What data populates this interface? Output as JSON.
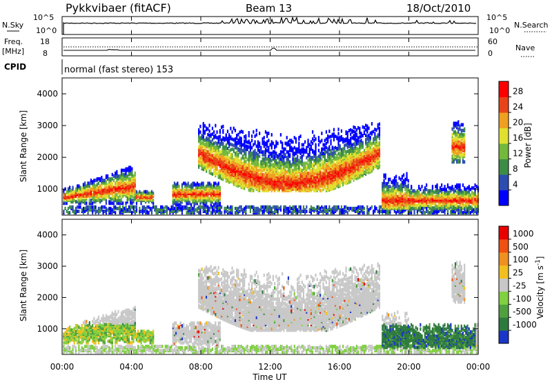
{
  "header": {
    "station": "Pykkvibaer (fitACF)",
    "beam": "Beam 13",
    "date": "18/Oct/2010"
  },
  "nsky_panel": {
    "left_label": "N.Sky",
    "left_ticks": [
      "10^5",
      "10^0"
    ],
    "right_ticks": [
      "10^5",
      "10^0"
    ],
    "right_label": "N.Search"
  },
  "freq_panel": {
    "left_label_line1": "Freq.",
    "left_label_line2": "[MHz]",
    "left_ticks": [
      "18",
      "8"
    ],
    "right_ticks": [
      "60",
      "0"
    ],
    "right_label": "Nave"
  },
  "cpid": {
    "label": "CPID",
    "value": "normal (fast stereo) 153"
  },
  "chart_data": [
    {
      "type": "heatmap",
      "title": "",
      "ylabel": "Slant Range [km]",
      "y_ticks": [
        "4000",
        "3000",
        "2000",
        "1000"
      ],
      "ylim": [
        180,
        4500
      ],
      "colorbar_label": "Power [dB]",
      "colorbar_ticks": [
        "28",
        "24",
        "20",
        "16",
        "12",
        "8",
        "4"
      ],
      "colormap": [
        "#0000ff",
        "#2c4cb0",
        "#3c8c46",
        "#74b83c",
        "#e0e030",
        "#f0a020",
        "#e84418",
        "#ff0000"
      ],
      "xlim_hours": [
        0,
        24
      ]
    },
    {
      "type": "heatmap",
      "title": "",
      "ylabel": "Slant Range [km]",
      "y_ticks": [
        "4000",
        "3000",
        "2000",
        "1000"
      ],
      "ylim": [
        180,
        4500
      ],
      "colorbar_label": "Velocity [m s^-1]",
      "colorbar_ticks": [
        "1000",
        "500",
        "100",
        "25",
        "-25",
        "-100",
        "-500",
        "-1000"
      ],
      "colormap": [
        "#1a36c8",
        "#2e7a3e",
        "#50a040",
        "#80d040",
        "#c8c8c8",
        "#f0c020",
        "#f09020",
        "#f05010",
        "#e80000"
      ],
      "xlim_hours": [
        0,
        24
      ]
    }
  ],
  "x_axis": {
    "ticks": [
      "00:00",
      "04:00",
      "08:00",
      "12:00",
      "16:00",
      "20:00",
      "00:00"
    ],
    "label": "Time UT"
  }
}
